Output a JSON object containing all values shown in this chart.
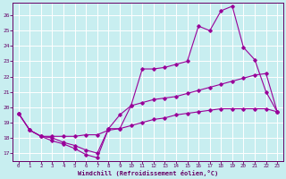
{
  "xlabel": "Windchill (Refroidissement éolien,°C)",
  "background_color": "#c8eef0",
  "grid_color": "#ffffff",
  "line_color": "#990099",
  "xlim": [
    -0.5,
    23.5
  ],
  "ylim": [
    16.5,
    26.8
  ],
  "yticks": [
    17,
    18,
    19,
    20,
    21,
    22,
    23,
    24,
    25,
    26
  ],
  "xticks": [
    0,
    1,
    2,
    3,
    4,
    5,
    6,
    7,
    8,
    9,
    10,
    11,
    12,
    13,
    14,
    15,
    16,
    17,
    18,
    19,
    20,
    21,
    22,
    23
  ],
  "series1_x": [
    0,
    1,
    2,
    3,
    4,
    5,
    6,
    7,
    8,
    9,
    10,
    11,
    12,
    13,
    14,
    15,
    16,
    17,
    18,
    19,
    20,
    21,
    22,
    23
  ],
  "series1_y": [
    19.6,
    18.5,
    18.1,
    17.8,
    17.6,
    17.3,
    16.9,
    16.7,
    18.6,
    18.6,
    20.1,
    22.5,
    22.5,
    22.6,
    22.8,
    23.0,
    25.3,
    25.0,
    26.3,
    26.6,
    23.9,
    23.1,
    21.0,
    19.7
  ],
  "series2_x": [
    0,
    1,
    2,
    3,
    4,
    5,
    6,
    7,
    8,
    9,
    10,
    11,
    12,
    13,
    14,
    15,
    16,
    17,
    18,
    19,
    20,
    21,
    22,
    23
  ],
  "series2_y": [
    19.6,
    18.5,
    18.1,
    18.1,
    18.1,
    18.1,
    18.2,
    18.2,
    18.5,
    18.6,
    18.8,
    19.0,
    19.2,
    19.3,
    19.5,
    19.6,
    19.7,
    19.8,
    19.9,
    19.9,
    19.9,
    19.9,
    19.9,
    19.7
  ],
  "series3_x": [
    0,
    1,
    2,
    3,
    4,
    5,
    6,
    7,
    8,
    9,
    10,
    11,
    12,
    13,
    14,
    15,
    16,
    17,
    18,
    19,
    20,
    21,
    22,
    23
  ],
  "series3_y": [
    19.6,
    18.5,
    18.1,
    18.0,
    17.7,
    17.5,
    17.2,
    17.0,
    18.6,
    19.5,
    20.1,
    20.3,
    20.5,
    20.6,
    20.7,
    20.9,
    21.1,
    21.3,
    21.5,
    21.7,
    21.9,
    22.1,
    22.2,
    19.7
  ]
}
